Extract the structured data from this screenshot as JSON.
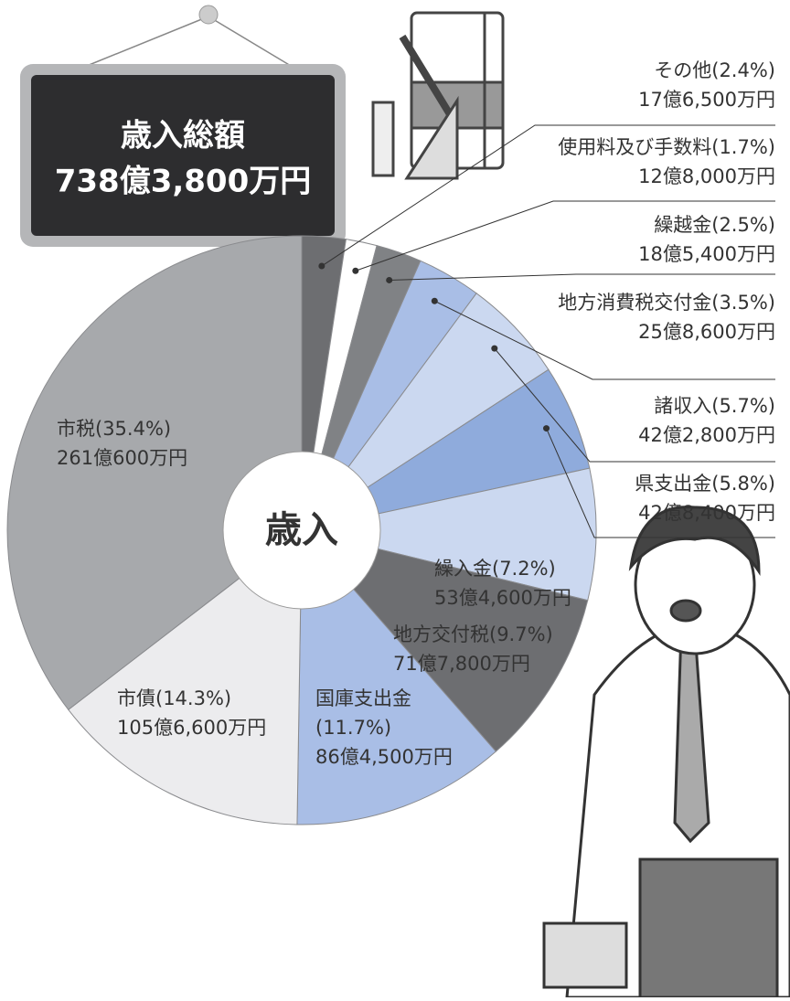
{
  "chart_data": {
    "type": "pie",
    "total_label": "歳入総額",
    "total": "738億3,800万円",
    "center_label": "歳入",
    "categories": [
      "その他",
      "使用料及び手数料",
      "繰越金",
      "地方消費税交付金",
      "諸収入",
      "県支出金",
      "繰入金",
      "地方交付税",
      "国庫支出金",
      "市債",
      "市税"
    ],
    "values": [
      2.4,
      1.7,
      2.5,
      3.5,
      5.7,
      5.8,
      7.2,
      9.7,
      11.7,
      14.3,
      35.4
    ],
    "value_labels": [
      "(2.4%)",
      "(1.7%)",
      "(2.5%)",
      "(3.5%)",
      "(5.7%)",
      "(5.8%)",
      "(7.2%)",
      "(9.7%)",
      "(11.7%)",
      "(14.3%)",
      "(35.4%)"
    ],
    "amounts": [
      "17億6,500万円",
      "12億8,000万円",
      "18億5,400万円",
      "25億8,600万円",
      "42億2,800万円",
      "42億8,400万円",
      "53億4,600万円",
      "71億7,800万円",
      "86億4,500万円",
      "105億6,600万円",
      "261億600万円"
    ],
    "colors": [
      "#6d6e71",
      "#ffffff",
      "#808285",
      "#a9bee6",
      "#cbd8f0",
      "#8fabdc",
      "#cbd8f0",
      "#6d6e71",
      "#a9bee6",
      "#ececee",
      "#a7a9ac"
    ]
  }
}
